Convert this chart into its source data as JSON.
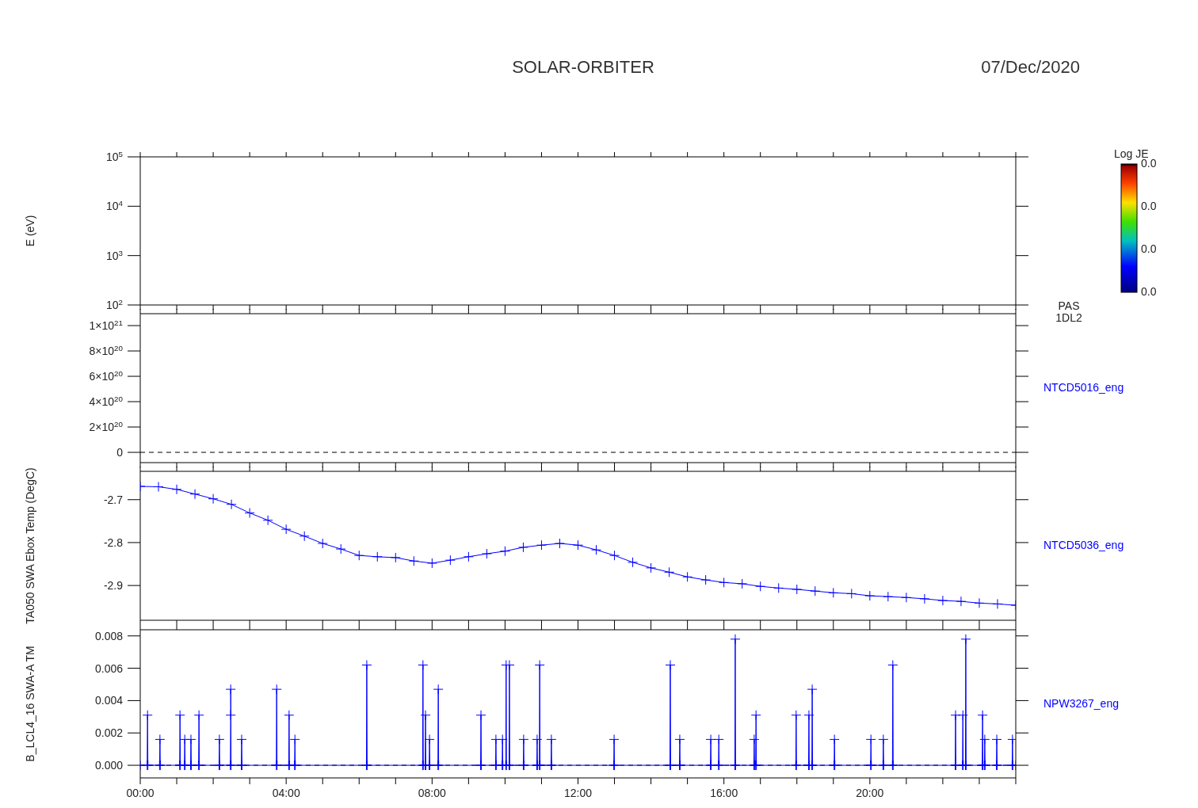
{
  "chart_data": [
    {
      "type": "line",
      "title": "SOLAR-ORBITER",
      "subtitle": "07/Dec/2020",
      "ylabel": "E (eV)",
      "log": "y",
      "xlim": [
        0,
        24
      ],
      "xticks": [
        0,
        1,
        2,
        3,
        4,
        5,
        6,
        7,
        8,
        9,
        10,
        11,
        12,
        13,
        14,
        15,
        16,
        17,
        18,
        19,
        20,
        21,
        22,
        23,
        24
      ],
      "ylim": [
        100,
        100000
      ],
      "yticks": [
        {
          "value": 100,
          "label": "10$^{2}$"
        },
        {
          "value": 1000,
          "label": "10$^{3}$"
        },
        {
          "value": 10000,
          "label": "10$^{4}$"
        },
        {
          "value": 100000,
          "label": "10$^{5}$"
        }
      ],
      "clabel": "Log JE",
      "annotations": [
        "PAS 1DL2",
        "0.0",
        "0.0",
        "0.0",
        "0.0"
      ],
      "tick_labels": "y"
    },
    {
      "type": "line",
      "xlim": [
        0,
        24
      ],
      "xticks": [
        0,
        1,
        2,
        3,
        4,
        5,
        6,
        7,
        8,
        9,
        10,
        11,
        12,
        13,
        14,
        15,
        16,
        17,
        18,
        19,
        20,
        21,
        22,
        23,
        24
      ],
      "ylim": [
        -8.1e+19,
        1.094e+21
      ],
      "yticks": [
        0,
        {
          "value": 2e+20,
          "label": "2×10$^{20}$"
        },
        {
          "value": 4e+20,
          "label": "4×10$^{20}$"
        },
        {
          "value": 6e+20,
          "label": "6×10$^{20}$"
        },
        {
          "value": 8e+20,
          "label": "8×10$^{20}$"
        },
        {
          "value": 1e+21,
          "label": "1×10$^{21}$"
        }
      ],
      "ref_lines": [
        {
          "axis": "y",
          "value": 0,
          "label": null,
          "color": "#000000",
          "line_style": "dashed"
        }
      ],
      "annotations": [
        "NTCD5016_eng"
      ],
      "tick_labels": "y"
    },
    {
      "type": "line",
      "ylabel": "TA050 SWA Ebox Temp (DegC)",
      "xlim": [
        0,
        24
      ],
      "xticks": [
        0,
        1,
        2,
        3,
        4,
        5,
        6,
        7,
        8,
        9,
        10,
        11,
        12,
        13,
        14,
        15,
        16,
        17,
        18,
        19,
        20,
        21,
        22,
        23,
        24
      ],
      "ylim": [
        -2.981,
        -2.634
      ],
      "yticks": [
        -2.9,
        -2.8,
        -2.7
      ],
      "tick_labels": "y",
      "marker": "cross",
      "series": [
        {
          "name": "NTCD5036_eng",
          "color": "#0000ff",
          "x": [
            0,
            0.5,
            1,
            1.5,
            2,
            2.5,
            3,
            3.5,
            4,
            4.5,
            5,
            5.5,
            6,
            6.5,
            7,
            7.5,
            8,
            8.5,
            9,
            9.5,
            10,
            10.5,
            11,
            11.5,
            12,
            12.5,
            13,
            13.5,
            14,
            14.5,
            15,
            15.5,
            16,
            16.5,
            17,
            17.5,
            18,
            18.5,
            19,
            19.5,
            20,
            20.5,
            21,
            21.5,
            22,
            22.5,
            23,
            23.5,
            24
          ],
          "values": [
            -2.669,
            -2.67,
            -2.676,
            -2.687,
            -2.698,
            -2.711,
            -2.731,
            -2.748,
            -2.769,
            -2.785,
            -2.802,
            -2.815,
            -2.83,
            -2.833,
            -2.835,
            -2.843,
            -2.848,
            -2.841,
            -2.833,
            -2.826,
            -2.82,
            -2.811,
            -2.806,
            -2.802,
            -2.806,
            -2.817,
            -2.83,
            -2.846,
            -2.859,
            -2.869,
            -2.88,
            -2.887,
            -2.893,
            -2.896,
            -2.902,
            -2.906,
            -2.909,
            -2.913,
            -2.917,
            -2.919,
            -2.924,
            -2.926,
            -2.928,
            -2.931,
            -2.935,
            -2.937,
            -2.941,
            -2.943,
            -2.946
          ]
        }
      ]
    },
    {
      "type": "line",
      "ylabel": "B_LCL4_16 SWA-A TM",
      "xlim": [
        0,
        24
      ],
      "xticks": [
        {
          "value": 0,
          "label": "00:00"
        },
        {
          "value": 1,
          "label": null
        },
        {
          "value": 2,
          "label": null
        },
        {
          "value": 3,
          "label": null
        },
        {
          "value": 4,
          "label": "04:00"
        },
        {
          "value": 5,
          "label": null
        },
        {
          "value": 6,
          "label": null
        },
        {
          "value": 7,
          "label": null
        },
        {
          "value": 8,
          "label": "08:00"
        },
        {
          "value": 9,
          "label": null
        },
        {
          "value": 10,
          "label": null
        },
        {
          "value": 11,
          "label": null
        },
        {
          "value": 12,
          "label": "12:00"
        },
        {
          "value": 13,
          "label": null
        },
        {
          "value": 14,
          "label": null
        },
        {
          "value": 15,
          "label": null
        },
        {
          "value": 16,
          "label": "16:00"
        },
        {
          "value": 17,
          "label": null
        },
        {
          "value": 18,
          "label": null
        },
        {
          "value": 19,
          "label": null
        },
        {
          "value": 20,
          "label": "20:00"
        },
        {
          "value": 21,
          "label": null
        },
        {
          "value": 22,
          "label": null
        },
        {
          "value": 23,
          "label": null
        },
        {
          "value": 24,
          "label": null
        }
      ],
      "ylim": [
        -0.00078,
        0.00838
      ],
      "yticks": [
        {
          "value": 0,
          "label": "0.000"
        },
        {
          "value": 0.002,
          "label": "0.002"
        },
        {
          "value": 0.004,
          "label": "0.004"
        },
        {
          "value": 0.006,
          "label": "0.006"
        },
        {
          "value": 0.008,
          "label": "0.008"
        }
      ],
      "ref_lines": [
        {
          "axis": "y",
          "value": 0,
          "label": null,
          "color": "#000000",
          "line_style": "dashed"
        }
      ],
      "marker": "cross",
      "series": [
        {
          "name": "NPW3267_eng",
          "color": "#0000ff",
          "x": [
            0,
            0.19,
            0.2,
            0.21,
            0.53,
            0.54,
            0.55,
            1.08,
            1.09,
            1.1,
            1.21,
            1.22,
            1.23,
            1.38,
            1.39,
            1.4,
            1.6,
            1.61,
            1.62,
            2.16,
            2.17,
            2.18,
            2.47,
            2.48,
            2.48,
            2.49,
            2.77,
            2.78,
            2.79,
            3.73,
            3.74,
            3.75,
            4.07,
            4.08,
            4.09,
            4.23,
            4.24,
            4.25,
            6.2,
            6.21,
            6.22,
            7.74,
            7.75,
            7.76,
            7.81,
            7.82,
            7.83,
            7.92,
            7.93,
            7.94,
            8.16,
            8.17,
            8.18,
            9.33,
            9.34,
            9.35,
            9.74,
            9.75,
            9.76,
            9.92,
            9.93,
            9.94,
            10.02,
            10.03,
            10.04,
            10.11,
            10.12,
            10.13,
            10.5,
            10.51,
            10.52,
            10.87,
            10.88,
            10.89,
            10.94,
            10.95,
            10.96,
            11.26,
            11.27,
            11.28,
            12.98,
            12.99,
            13,
            14.52,
            14.53,
            14.54,
            14.78,
            14.79,
            14.8,
            15.63,
            15.64,
            15.65,
            15.85,
            15.86,
            15.87,
            16.3,
            16.31,
            16.32,
            16.82,
            16.83,
            16.84,
            16.87,
            16.88,
            16.89,
            17.97,
            17.98,
            17.99,
            18.32,
            18.33,
            18.34,
            18.41,
            18.42,
            18.43,
            19.02,
            19.03,
            19.04,
            20.02,
            20.03,
            20.04,
            20.36,
            20.37,
            20.38,
            20.62,
            20.63,
            20.64,
            22.34,
            22.35,
            22.36,
            22.54,
            22.55,
            22.56,
            22.62,
            22.63,
            22.64,
            23.08,
            23.09,
            23.1,
            23.14,
            23.15,
            23.16,
            23.47,
            23.48,
            23.49,
            23.9,
            23.91,
            23.92,
            24
          ],
          "values": [
            0,
            0,
            0.0031,
            0,
            0,
            0.0016,
            0,
            0,
            0.0031,
            0,
            0,
            0.0016,
            0,
            0,
            0.0016,
            0,
            0,
            0.0031,
            0,
            0,
            0.0016,
            0,
            0,
            0.0031,
            0.0047,
            0,
            0,
            0.0016,
            0,
            0,
            0.0047,
            0,
            0,
            0.0031,
            0,
            0,
            0.0016,
            0,
            0,
            0.0062,
            0,
            0,
            0.0062,
            0,
            0,
            0.0031,
            0,
            0,
            0.0016,
            0,
            0,
            0.0047,
            0,
            0,
            0.0031,
            0,
            0,
            0.0016,
            0,
            0,
            0.0016,
            0,
            0,
            0.0062,
            0,
            0,
            0.0062,
            0,
            0,
            0.0016,
            0,
            0,
            0.0016,
            0,
            0,
            0.0062,
            0,
            0,
            0.0016,
            0,
            0,
            0.0016,
            0,
            0,
            0.0062,
            0,
            0,
            0.0016,
            0,
            0,
            0.0016,
            0,
            0,
            0.0016,
            0,
            0,
            0.0078,
            0,
            0,
            0.0016,
            0,
            0,
            0.0031,
            0,
            0,
            0.0031,
            0,
            0,
            0.0031,
            0,
            0,
            0.0047,
            0,
            0,
            0.0016,
            0,
            0,
            0.0016,
            0,
            0,
            0.0016,
            0,
            0,
            0.0062,
            0,
            0,
            0.0031,
            0,
            0,
            0.0031,
            0,
            0,
            0.0078,
            0,
            0,
            0.0031,
            0,
            0,
            0.0016,
            0,
            0,
            0.0016,
            0,
            0,
            0.0016,
            0,
            0
          ]
        }
      ]
    }
  ]
}
